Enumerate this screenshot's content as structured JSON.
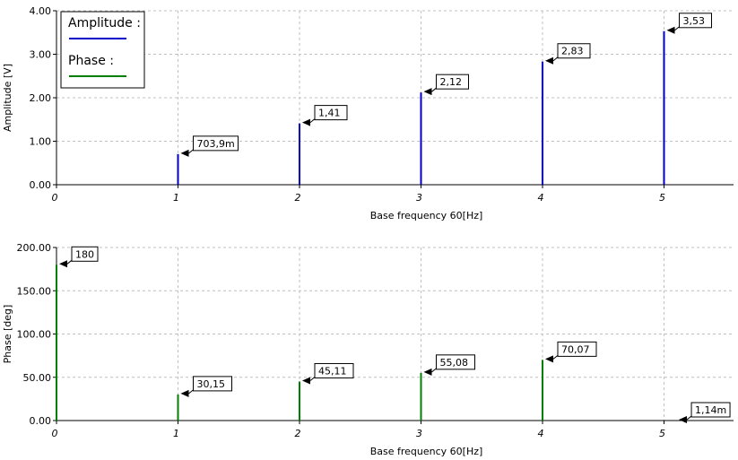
{
  "chart_data": [
    {
      "type": "bar",
      "ylabel": "Amplitude [V]",
      "xlabel": "Base frequency 60[Hz]",
      "x": [
        1,
        2,
        3,
        4,
        5
      ],
      "x_ticks": [
        "0",
        "1",
        "2",
        "3",
        "4",
        "5"
      ],
      "y_ticks": [
        "0.00",
        "1.00",
        "2.00",
        "3.00",
        "4.00"
      ],
      "ylim": [
        0,
        4
      ],
      "xlim": [
        0,
        5.6
      ],
      "grid": true,
      "series": [
        {
          "name": "Amplitude :",
          "color": "#0000c8",
          "values": [
            0.7039,
            1.41,
            2.12,
            2.83,
            3.53
          ],
          "labels": [
            "703,9m",
            "1,41",
            "2,12",
            "2,83",
            "3,53"
          ]
        }
      ],
      "legend": {
        "position": "top-left",
        "entries": [
          {
            "label": "Amplitude :",
            "color": "#0000c8"
          },
          {
            "label": "Phase :",
            "color": "#008000"
          }
        ]
      }
    },
    {
      "type": "bar",
      "ylabel": "Phase [deg]",
      "xlabel": "Base frequency 60[Hz]",
      "x": [
        0,
        1,
        2,
        3,
        4,
        5.1
      ],
      "x_ticks": [
        "0",
        "1",
        "2",
        "3",
        "4",
        "5"
      ],
      "y_ticks": [
        "0.00",
        "50.00",
        "100.00",
        "150.00",
        "200.00"
      ],
      "ylim": [
        0,
        200
      ],
      "xlim": [
        0,
        5.6
      ],
      "grid": true,
      "series": [
        {
          "color": "#008000",
          "values": [
            180,
            30.15,
            45.11,
            55.08,
            70.07,
            0.00114
          ],
          "labels": [
            "180",
            "30,15",
            "45,11",
            "55,08",
            "70,07",
            "1,14m"
          ]
        }
      ]
    }
  ]
}
